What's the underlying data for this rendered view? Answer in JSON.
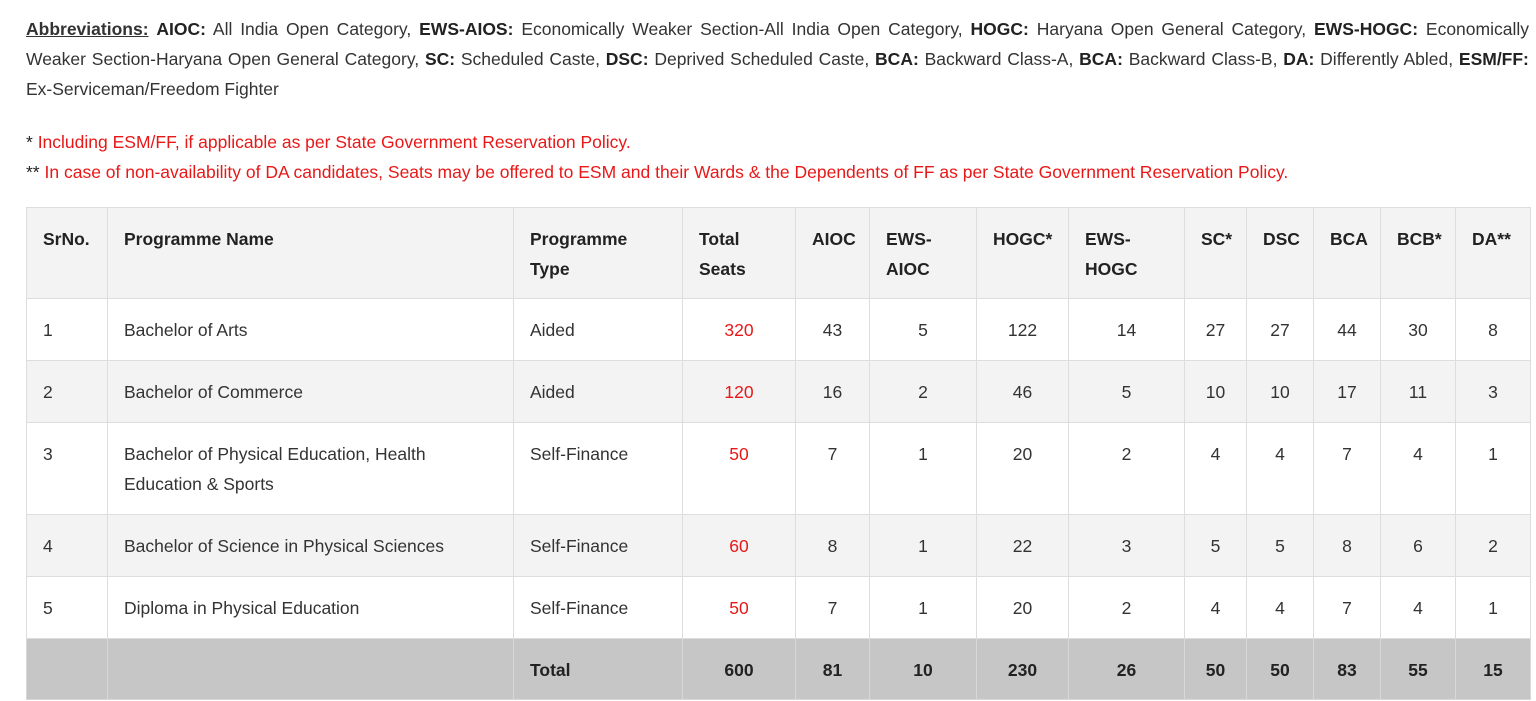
{
  "abbreviations": {
    "heading": "Abbreviations:",
    "items": [
      {
        "code": "AIOC:",
        "text": "All India Open Category,"
      },
      {
        "code": "EWS-AIOS:",
        "text": "Economically Weaker Section-All India Open Category,"
      },
      {
        "code": "HOGC:",
        "text": "Haryana Open General Category,"
      },
      {
        "code": "EWS-HOGC:",
        "text": "Economically Weaker Section-Haryana Open General Category,"
      },
      {
        "code": "SC:",
        "text": "Scheduled Caste,"
      },
      {
        "code": "DSC:",
        "text": "Deprived Scheduled Caste,"
      },
      {
        "code": "BCA:",
        "text": "Backward Class-A,"
      },
      {
        "code": "BCA:",
        "text": "Backward Class-B,"
      },
      {
        "code": "DA:",
        "text": "Differently Abled,"
      },
      {
        "code": "ESM/FF:",
        "text": "Ex-Serviceman/Freedom Fighter"
      }
    ]
  },
  "notes": [
    {
      "marker": "*",
      "text": "Including ESM/FF, if applicable as per State Government Reservation Policy."
    },
    {
      "marker": "**",
      "text": "In case of non-availability of DA candidates, Seats may be offered to ESM and their Wards & the Dependents of FF as per State Government Reservation Policy."
    }
  ],
  "table": {
    "headers": {
      "srno": "SrNo.",
      "name": "Programme Name",
      "type": "Programme Type",
      "total": "Total Seats",
      "aioc": "AIOC",
      "ews_aioc": "EWS-AIOC",
      "hogc": "HOGC*",
      "ews_hogc": "EWS-HOGC",
      "sc": "SC*",
      "dsc": "DSC",
      "bca": "BCA",
      "bcb": "BCB*",
      "da": "DA**"
    },
    "rows": [
      {
        "srno": "1",
        "name": "Bachelor of Arts",
        "type": "Aided",
        "total": "320",
        "aioc": "43",
        "ews_aioc": "5",
        "hogc": "122",
        "ews_hogc": "14",
        "sc": "27",
        "dsc": "27",
        "bca": "44",
        "bcb": "30",
        "da": "8"
      },
      {
        "srno": "2",
        "name": "Bachelor of Commerce",
        "type": "Aided",
        "total": "120",
        "aioc": "16",
        "ews_aioc": "2",
        "hogc": "46",
        "ews_hogc": "5",
        "sc": "10",
        "dsc": "10",
        "bca": "17",
        "bcb": "11",
        "da": "3"
      },
      {
        "srno": "3",
        "name": "Bachelor of Physical Education, Health Education & Sports",
        "type": "Self-Finance",
        "total": "50",
        "aioc": "7",
        "ews_aioc": "1",
        "hogc": "20",
        "ews_hogc": "2",
        "sc": "4",
        "dsc": "4",
        "bca": "7",
        "bcb": "4",
        "da": "1"
      },
      {
        "srno": "4",
        "name": "Bachelor of Science in Physical Sciences",
        "type": "Self-Finance",
        "total": "60",
        "aioc": "8",
        "ews_aioc": "1",
        "hogc": "22",
        "ews_hogc": "3",
        "sc": "5",
        "dsc": "5",
        "bca": "8",
        "bcb": "6",
        "da": "2"
      },
      {
        "srno": "5",
        "name": "Diploma in Physical Education",
        "type": "Self-Finance",
        "total": "50",
        "aioc": "7",
        "ews_aioc": "1",
        "hogc": "20",
        "ews_hogc": "2",
        "sc": "4",
        "dsc": "4",
        "bca": "7",
        "bcb": "4",
        "da": "1"
      }
    ],
    "total_row": {
      "label": "Total",
      "total": "600",
      "aioc": "81",
      "ews_aioc": "10",
      "hogc": "230",
      "ews_hogc": "26",
      "sc": "50",
      "dsc": "50",
      "bca": "83",
      "bcb": "55",
      "da": "15"
    }
  },
  "colors": {
    "note_red": "#e81818",
    "header_bg": "#f3f3f3",
    "total_bg": "#c6c6c6"
  }
}
